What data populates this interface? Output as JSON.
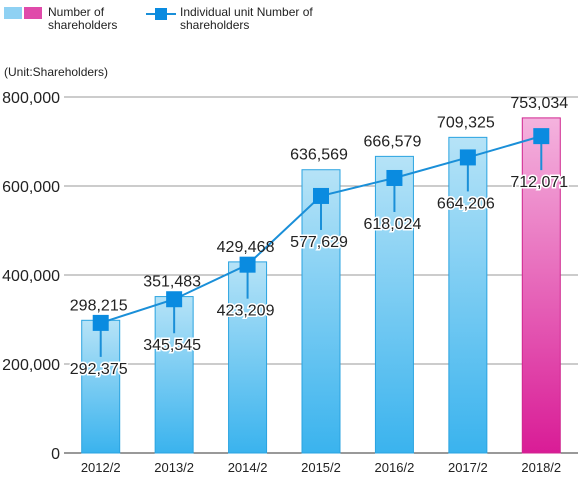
{
  "legend": {
    "bars_label": "Number of\nshareholders",
    "line_label": "Individual unit Number of\nshareholders"
  },
  "unit_label": "(Unit:Shareholders)",
  "colors": {
    "bar_top": "#b6e3f7",
    "bar_bottom": "#3ab3ee",
    "bar_stroke": "#2aa3e0",
    "highlight_top": "#f4b3de",
    "highlight_bottom": "#d91c96",
    "highlight_stroke": "#d0258f",
    "line": "#1a8fd8",
    "marker": "#0a8be0"
  },
  "chart_data": {
    "type": "bar",
    "categories": [
      "2012/2",
      "2013/2",
      "2014/2",
      "2015/2",
      "2016/2",
      "2017/2",
      "2018/2"
    ],
    "series": [
      {
        "name": "Number of shareholders",
        "type": "bar",
        "values": [
          298215,
          351483,
          429468,
          636569,
          666579,
          709325,
          753034
        ],
        "labels": [
          "298,215",
          "351,483",
          "429,468",
          "636,569",
          "666,579",
          "709,325",
          "753,034"
        ]
      },
      {
        "name": "Individual unit Number of shareholders",
        "type": "line",
        "values": [
          292375,
          345545,
          423209,
          577629,
          618024,
          664206,
          712071
        ],
        "labels": [
          "292,375",
          "345,545",
          "423,209",
          "577,629",
          "618,024",
          "664,206",
          "712,071"
        ]
      }
    ],
    "highlight_category": "2018/2",
    "ylim": [
      0,
      800000
    ],
    "yticks": [
      0,
      200000,
      400000,
      600000,
      800000
    ],
    "ytick_labels": [
      "0",
      "200,000",
      "400,000",
      "600,000",
      "800,000"
    ],
    "grid": true
  }
}
